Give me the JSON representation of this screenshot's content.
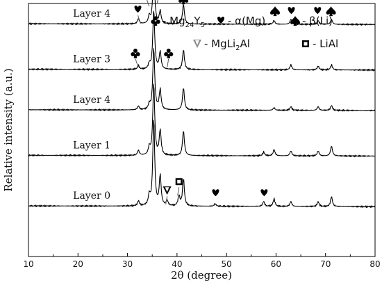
{
  "chart_data": {
    "type": "line",
    "title": "",
    "xlabel": "2θ (degree)",
    "ylabel": "Relative intensity (a.u.)",
    "xlim": [
      10,
      80
    ],
    "x_ticks": [
      "10",
      "20",
      "30",
      "40",
      "50",
      "60",
      "70",
      "80"
    ],
    "y_ticks_labeled": false,
    "grid": false,
    "legend_placement": "top",
    "legend": [
      {
        "symbol": "club",
        "prefix": " - Mg",
        "sub1": "24",
        "mid": "Y",
        "sub2": "5"
      },
      {
        "symbol": "heart",
        "text": " - α(Mg)"
      },
      {
        "symbol": "spade",
        "text": " - β(Li)"
      },
      {
        "symbol": "arrowhead",
        "prefix": " - MgLi",
        "sub1": "2",
        "mid": "Al"
      },
      {
        "symbol": "square-loop",
        "text": " - LiAl"
      }
    ],
    "series": [
      {
        "name": "Layer 4",
        "baseline_intensity": 0.92,
        "peaks": [
          {
            "x": 32.2,
            "intensity": 0.02
          },
          {
            "x": 34.4,
            "intensity": 0.03
          },
          {
            "x": 35.3,
            "intensity": 0.22
          },
          {
            "x": 36.6,
            "intensity": 0.05
          },
          {
            "x": 41.3,
            "intensity": 0.08
          },
          {
            "x": 59.6,
            "intensity": 0.015
          },
          {
            "x": 63.0,
            "intensity": 0.02
          },
          {
            "x": 68.5,
            "intensity": 0.015
          },
          {
            "x": 71.2,
            "intensity": 0.02
          }
        ]
      },
      {
        "name": "Layer 3",
        "baseline_intensity": 0.74,
        "peaks": [
          {
            "x": 32.2,
            "intensity": 0.015
          },
          {
            "x": 34.4,
            "intensity": 0.02
          },
          {
            "x": 35.3,
            "intensity": 0.24
          },
          {
            "x": 36.6,
            "intensity": 0.07
          },
          {
            "x": 41.3,
            "intensity": 0.08
          },
          {
            "x": 63.0,
            "intensity": 0.02
          },
          {
            "x": 68.5,
            "intensity": 0.015
          },
          {
            "x": 71.2,
            "intensity": 0.02
          }
        ]
      },
      {
        "name": "Layer 4",
        "baseline_intensity": 0.58,
        "peaks": [
          {
            "x": 32.2,
            "intensity": 0.015
          },
          {
            "x": 34.4,
            "intensity": 0.02
          },
          {
            "x": 35.3,
            "intensity": 0.25
          },
          {
            "x": 36.6,
            "intensity": 0.08
          },
          {
            "x": 41.3,
            "intensity": 0.09
          },
          {
            "x": 59.6,
            "intensity": 0.01
          },
          {
            "x": 63.0,
            "intensity": 0.015
          },
          {
            "x": 68.5,
            "intensity": 0.015
          },
          {
            "x": 71.2,
            "intensity": 0.02
          }
        ]
      },
      {
        "name": "Layer 1",
        "baseline_intensity": 0.4,
        "peaks": [
          {
            "x": 32.2,
            "intensity": 0.02
          },
          {
            "x": 34.4,
            "intensity": 0.03
          },
          {
            "x": 35.3,
            "intensity": 0.29
          },
          {
            "x": 36.6,
            "intensity": 0.1
          },
          {
            "x": 41.3,
            "intensity": 0.1
          },
          {
            "x": 57.5,
            "intensity": 0.015
          },
          {
            "x": 59.6,
            "intensity": 0.025
          },
          {
            "x": 63.0,
            "intensity": 0.02
          },
          {
            "x": 68.5,
            "intensity": 0.02
          },
          {
            "x": 71.2,
            "intensity": 0.04
          }
        ]
      },
      {
        "name": "Layer 0",
        "baseline_intensity": 0.2,
        "peaks": [
          {
            "x": 32.2,
            "intensity": 0.02
          },
          {
            "x": 34.4,
            "intensity": 0.04
          },
          {
            "x": 35.3,
            "intensity": 0.35
          },
          {
            "x": 36.6,
            "intensity": 0.12
          },
          {
            "x": 38.0,
            "intensity": 0.02
          },
          {
            "x": 40.4,
            "intensity": 0.04
          },
          {
            "x": 41.3,
            "intensity": 0.11
          },
          {
            "x": 47.7,
            "intensity": 0.01
          },
          {
            "x": 57.5,
            "intensity": 0.02
          },
          {
            "x": 59.6,
            "intensity": 0.03
          },
          {
            "x": 63.0,
            "intensity": 0.02
          },
          {
            "x": 68.5,
            "intensity": 0.02
          },
          {
            "x": 71.2,
            "intensity": 0.04
          }
        ]
      }
    ],
    "peak_markers": [
      {
        "phase": "spade",
        "x": 41.3,
        "layer": 0
      },
      {
        "phase": "heart",
        "x": 33.8,
        "layer": 0,
        "arrow": true
      },
      {
        "phase": "heart",
        "x": 32.1,
        "layer": 0,
        "arrow": true
      },
      {
        "phase": "heart",
        "x": 36.3,
        "layer": 0,
        "arrow": true
      },
      {
        "phase": "spade",
        "x": 59.8,
        "layer": 0
      },
      {
        "phase": "heart",
        "x": 63.1,
        "layer": 0
      },
      {
        "phase": "heart",
        "x": 68.4,
        "layer": 0
      },
      {
        "phase": "spade",
        "x": 71.1,
        "layer": 0
      },
      {
        "phase": "club",
        "x": 31.6,
        "layer": 1,
        "arrow": true
      },
      {
        "phase": "club",
        "x": 38.3,
        "layer": 1,
        "arrow": true
      },
      {
        "phase": "arrowhead",
        "x": 38.0,
        "layer": 4,
        "arrow": true
      },
      {
        "phase": "square-loop",
        "x": 40.4,
        "layer": 4,
        "arrow": true
      },
      {
        "phase": "heart",
        "x": 47.8,
        "layer": 4
      },
      {
        "phase": "heart",
        "x": 57.6,
        "layer": 4
      }
    ]
  }
}
